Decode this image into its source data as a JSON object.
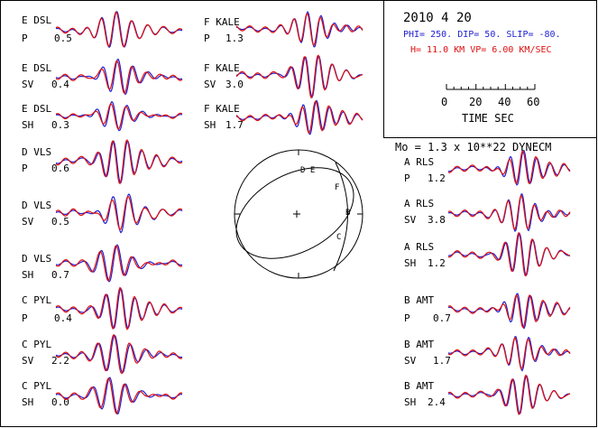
{
  "event": {
    "date": "2010  4 20",
    "mechanism": "PHI= 250. DIP= 50. SLIP= -80.",
    "depth_velocity": "H= 11.0 KM  VP= 6.00 KM/SEC",
    "moment": "Mo =  1.3 x 10**22 DYNECM"
  },
  "time_scale": {
    "ticks": [
      "0",
      "20",
      "40",
      "60"
    ],
    "label": "TIME  SEC"
  },
  "colors": {
    "observed": "#1f1fd0",
    "synthetic": "#e01010",
    "frame": "#000000"
  },
  "stations": [
    {
      "station": "E DSL",
      "phase": "P",
      "amp": "0.5"
    },
    {
      "station": "E DSL",
      "phase": "SV",
      "amp": "0.4"
    },
    {
      "station": "E DSL",
      "phase": "SH",
      "amp": "0.3"
    },
    {
      "station": "D VLS",
      "phase": "P",
      "amp": "0.6"
    },
    {
      "station": "D VLS",
      "phase": "SV",
      "amp": "0.5"
    },
    {
      "station": "D VLS",
      "phase": "SH",
      "amp": "0.7"
    },
    {
      "station": "C PYL",
      "phase": "P",
      "amp": "0.4"
    },
    {
      "station": "C PYL",
      "phase": "SV",
      "amp": "2.2"
    },
    {
      "station": "C PYL",
      "phase": "SH",
      "amp": "0.0"
    },
    {
      "station": "F KALE",
      "phase": "P",
      "amp": "1.3"
    },
    {
      "station": "F KALE",
      "phase": "SV",
      "amp": "3.0"
    },
    {
      "station": "F KALE",
      "phase": "SH",
      "amp": "1.7"
    },
    {
      "station": "A RLS",
      "phase": "P",
      "amp": "1.2"
    },
    {
      "station": "A RLS",
      "phase": "SV",
      "amp": "3.8"
    },
    {
      "station": "A RLS",
      "phase": "SH",
      "amp": "1.2"
    },
    {
      "station": "B AMT",
      "phase": "P",
      "amp": "0.7"
    },
    {
      "station": "B AMT",
      "phase": "SV",
      "amp": "1.7"
    },
    {
      "station": "B AMT",
      "phase": "SH",
      "amp": "2.4"
    }
  ],
  "focal_sphere": {
    "station_letters": [
      "D E",
      "F",
      "B",
      "C"
    ]
  }
}
